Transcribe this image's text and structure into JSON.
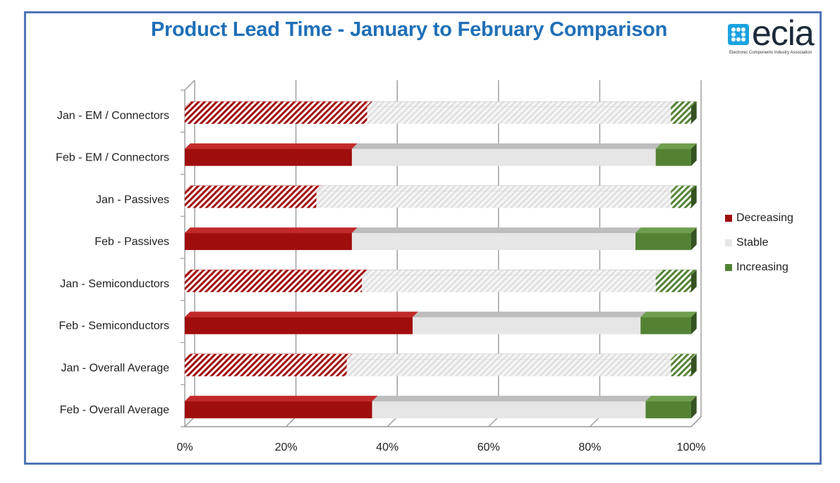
{
  "header": {
    "title": "Product Lead Time - January to February Comparison",
    "logo_word": "ecia",
    "logo_tagline": "Electronic Components Industry Association"
  },
  "colors": {
    "decreasing": "#a00d0d",
    "stable": "#e6e6e6",
    "increasing": "#548235",
    "frame": "#4f74b8",
    "title": "#1f6fb7",
    "grid": "#9a9a9a"
  },
  "chart_data": {
    "type": "bar",
    "orientation": "horizontal",
    "stacked": "percent",
    "categories": [
      "Jan - EM / Connectors",
      "Feb - EM / Connectors",
      "Jan - Passives",
      "Feb - Passives",
      "Jan - Semiconductors",
      "Feb - Semiconductors",
      "Jan - Overall Average",
      "Feb - Overall Average"
    ],
    "patterned": [
      true,
      false,
      true,
      false,
      true,
      false,
      true,
      false
    ],
    "series": [
      {
        "name": "Decreasing",
        "values": [
          36,
          33,
          26,
          33,
          35,
          45,
          32,
          37
        ]
      },
      {
        "name": "Stable",
        "values": [
          60,
          60,
          70,
          56,
          58,
          45,
          64,
          54
        ]
      },
      {
        "name": "Increasing",
        "values": [
          4,
          7,
          4,
          11,
          7,
          10,
          4,
          9
        ]
      }
    ],
    "xlim": [
      0,
      100
    ],
    "xticks": [
      "0%",
      "20%",
      "40%",
      "60%",
      "80%",
      "100%"
    ],
    "legend_position": "right",
    "grid": true
  }
}
